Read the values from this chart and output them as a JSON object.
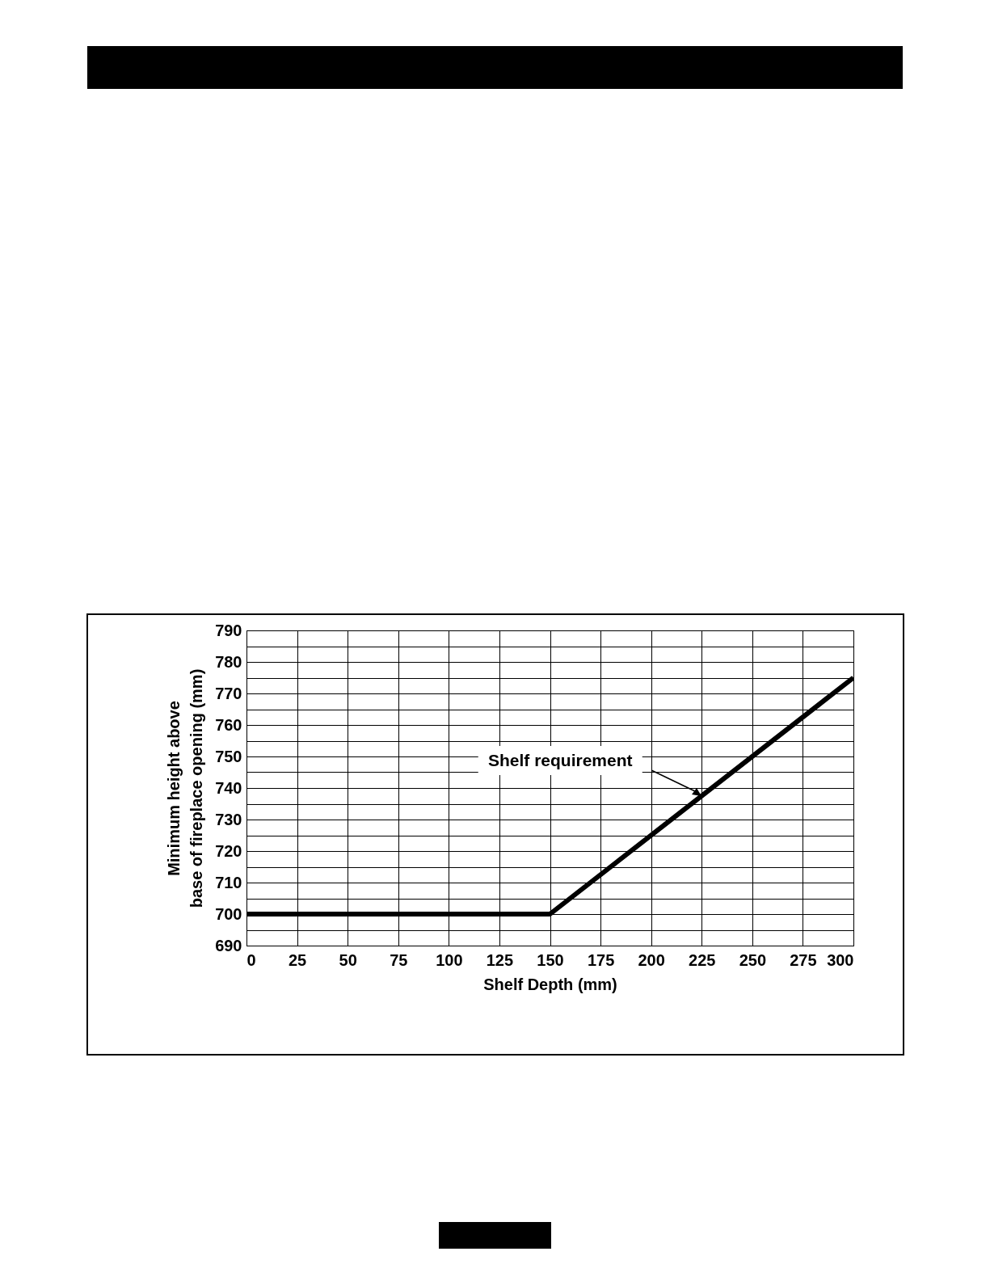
{
  "chart_data": {
    "type": "line",
    "xlabel": "Shelf Depth (mm)",
    "ylabel": "Minimum height above\nbase of fireplace opening (mm)",
    "x": [
      0,
      150,
      300
    ],
    "series": [
      {
        "color": "#000000",
        "values": [
          700,
          700,
          775
        ]
      }
    ],
    "xlim": [
      0,
      300
    ],
    "xticks": [
      0,
      25,
      50,
      75,
      100,
      125,
      150,
      175,
      200,
      225,
      250,
      275,
      300
    ],
    "ylim": [
      690,
      790
    ],
    "yticks": [
      690,
      {
        "value": 695,
        "label": null
      },
      700,
      {
        "value": 705,
        "label": null
      },
      710,
      {
        "value": 715,
        "label": null
      },
      720,
      {
        "value": 725,
        "label": null
      },
      730,
      {
        "value": 735,
        "label": null
      },
      740,
      {
        "value": 745,
        "label": null
      },
      750,
      {
        "value": 755,
        "label": null
      },
      760,
      {
        "value": 765,
        "label": null
      },
      770,
      {
        "value": 775,
        "label": null
      },
      780,
      {
        "value": 785,
        "label": null
      },
      790
    ],
    "grid": true,
    "marker": "none",
    "line_style": "solid",
    "annotations": [
      "Shelf requirement"
    ]
  }
}
